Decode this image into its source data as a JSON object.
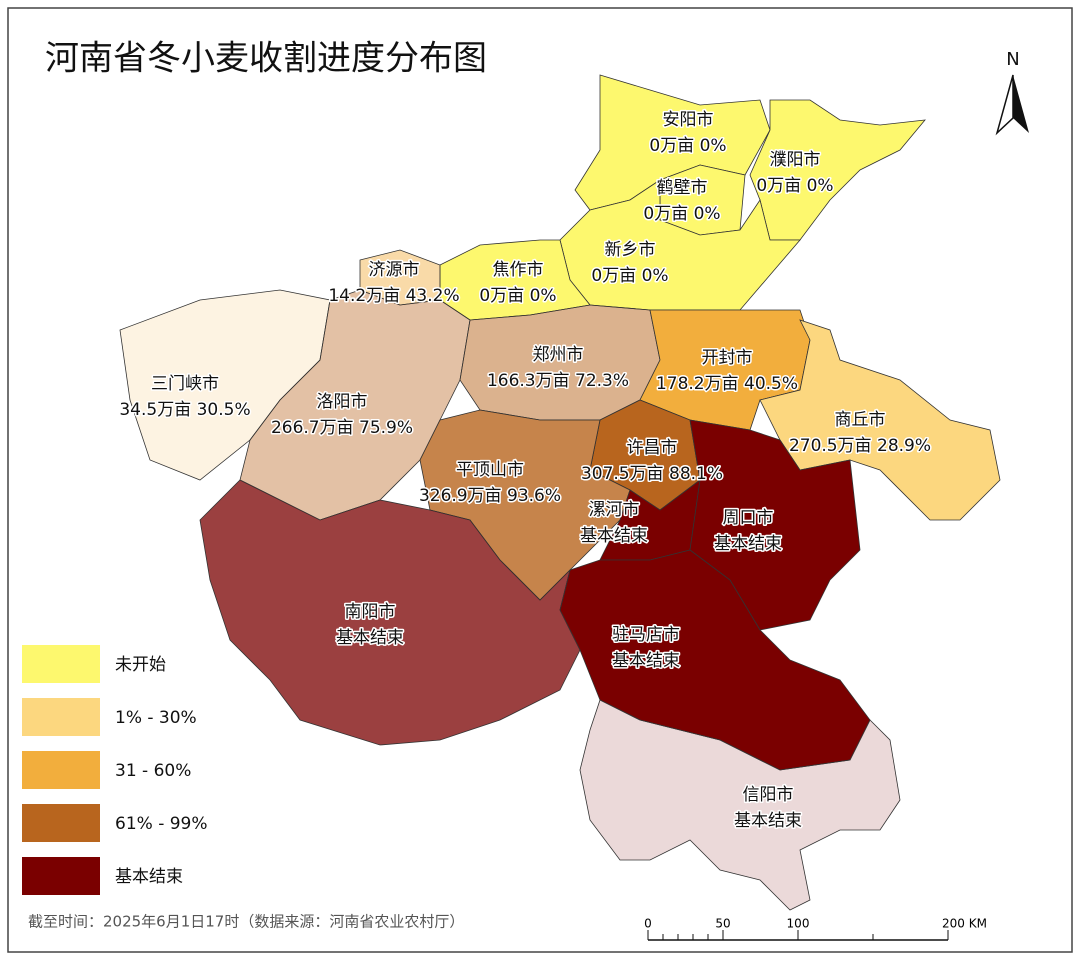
{
  "title": "河南省冬小麦收割进度分布图",
  "north": "N",
  "footnote": "截至时间：2025年6月1日17时（数据来源：河南省农业农村厅）",
  "scale_bar": [
    "0",
    "50",
    "100",
    "200 KM"
  ],
  "legend": [
    {
      "label": "未开始",
      "color": "#fdf86e"
    },
    {
      "label": "1% - 30%",
      "color": "#fcd77f"
    },
    {
      "label": "31 - 60%",
      "color": "#f2ae3d"
    },
    {
      "label": "61% - 99%",
      "color": "#b8651e"
    },
    {
      "label": "基本结束",
      "color": "#7a0000"
    }
  ],
  "cities": [
    {
      "name": "安阳市",
      "detail": "0万亩 0%",
      "color": "#fdf86e"
    },
    {
      "name": "濮阳市",
      "detail": "0万亩 0%",
      "color": "#fdf86e"
    },
    {
      "name": "鹤壁市",
      "detail": "0万亩 0%",
      "color": "#fdf86e"
    },
    {
      "name": "新乡市",
      "detail": "0万亩 0%",
      "color": "#fdf86e"
    },
    {
      "name": "焦作市",
      "detail": "0万亩 0%",
      "color": "#fdf86e"
    },
    {
      "name": "济源市",
      "detail": "14.2万亩 43.2%",
      "color": "#f2ae3d"
    },
    {
      "name": "三门峡市",
      "detail": "34.5万亩 30.5%",
      "color": "#f2ae3d"
    },
    {
      "name": "洛阳市",
      "detail": "266.7万亩 75.9%",
      "color": "#b8651e"
    },
    {
      "name": "郑州市",
      "detail": "166.3万亩 72.3%",
      "color": "#b8651e"
    },
    {
      "name": "开封市",
      "detail": "178.2万亩 40.5%",
      "color": "#f2ae3d"
    },
    {
      "name": "商丘市",
      "detail": "270.5万亩 28.9%",
      "color": "#fcd77f"
    },
    {
      "name": "许昌市",
      "detail": "307.5万亩 88.1%",
      "color": "#b8651e"
    },
    {
      "name": "平顶山市",
      "detail": "326.9万亩 93.6%",
      "color": "#b8651e"
    },
    {
      "name": "漯河市",
      "detail": "基本结束",
      "color": "#7a0000"
    },
    {
      "name": "周口市",
      "detail": "基本结束",
      "color": "#7a0000"
    },
    {
      "name": "驻马店市",
      "detail": "基本结束",
      "color": "#7a0000"
    },
    {
      "name": "南阳市",
      "detail": "基本结束",
      "color": "#7a0000"
    },
    {
      "name": "信阳市",
      "detail": "基本结束",
      "color": "#7a0000"
    }
  ]
}
